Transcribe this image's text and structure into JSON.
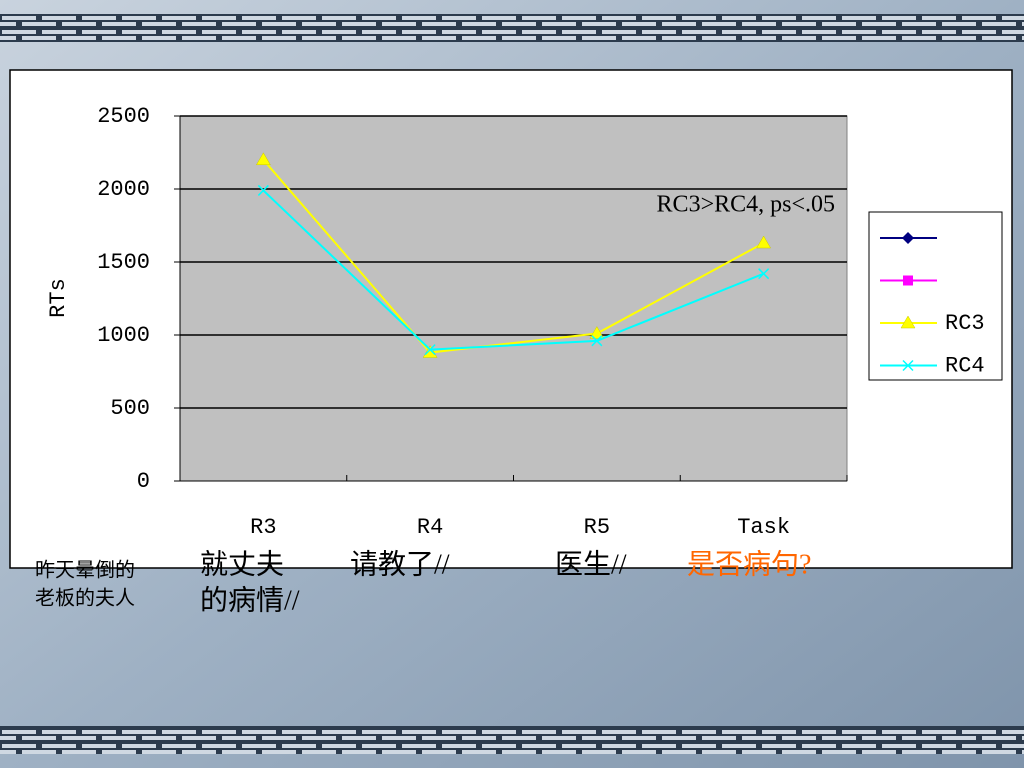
{
  "chart_data": {
    "type": "line",
    "ylabel": "RTs",
    "annotation": "RC3>RC4, ps<.05",
    "categories": [
      "R3",
      "R4",
      "R5",
      "Task"
    ],
    "ylim": [
      0,
      2500
    ],
    "yticks": [
      0,
      500,
      1000,
      1500,
      2000,
      2500
    ],
    "grid": true,
    "legend": "right",
    "series": [
      {
        "name": null,
        "color": "#000080",
        "marker": "diamond",
        "values": [
          null,
          null,
          null,
          null
        ]
      },
      {
        "name": null,
        "color": "#ff00ff",
        "marker": "square",
        "values": [
          null,
          null,
          null,
          null
        ]
      },
      {
        "name": "RC3",
        "color": "#ffff00",
        "marker": "triangle",
        "values": [
          2200,
          880,
          1010,
          1630
        ]
      },
      {
        "name": "RC4",
        "color": "#00ffff",
        "marker": "x",
        "values": [
          1990,
          900,
          960,
          1420
        ]
      }
    ]
  },
  "sentence": [
    {
      "lines": [
        "昨天晕倒的",
        "老板的夫人"
      ],
      "color": "#000000"
    },
    {
      "lines": [
        "就丈夫",
        "的病情//"
      ],
      "color": "#000000"
    },
    {
      "lines": [
        "请教了//"
      ],
      "color": "#000000"
    },
    {
      "lines": [
        "医生//"
      ],
      "color": "#000000"
    },
    {
      "lines": [
        "是否病句?"
      ],
      "color": "#ff6600"
    }
  ]
}
